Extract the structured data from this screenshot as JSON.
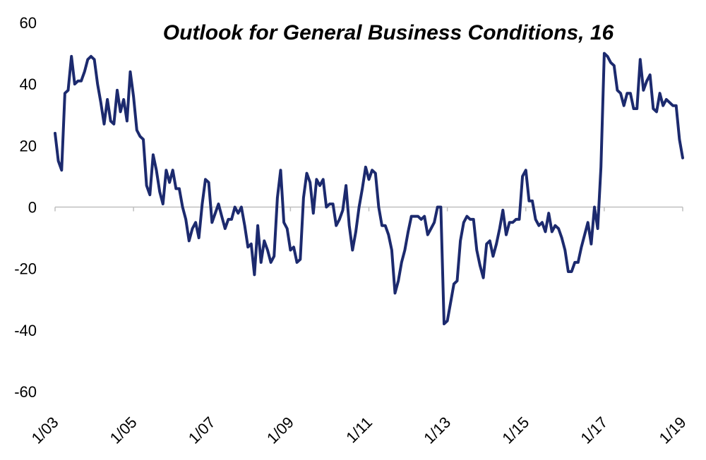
{
  "chart_data": {
    "type": "line",
    "title": "Outlook for General Business Conditions, 16",
    "xlabel": "",
    "ylabel": "",
    "ylim": [
      -60,
      60
    ],
    "yticks": [
      "60",
      "40",
      "20",
      "0",
      "-20",
      "-40",
      "-60"
    ],
    "xticks": [
      "1/03",
      "1/05",
      "1/07",
      "1/09",
      "1/11",
      "1/13",
      "1/15",
      "1/17",
      "1/19"
    ],
    "grid": false,
    "legend": "none",
    "line_color": "#1c2a6e",
    "series": [
      {
        "points": [
          [
            "2003-01",
            24
          ],
          [
            "2003-02",
            15
          ],
          [
            "2003-03",
            12
          ],
          [
            "2003-04",
            37
          ],
          [
            "2003-05",
            38
          ],
          [
            "2003-06",
            49
          ],
          [
            "2003-07",
            40
          ],
          [
            "2003-08",
            41
          ],
          [
            "2003-09",
            41
          ],
          [
            "2003-10",
            44
          ],
          [
            "2003-11",
            48
          ],
          [
            "2003-12",
            49
          ],
          [
            "2004-01",
            48
          ],
          [
            "2004-02",
            40
          ],
          [
            "2004-03",
            34
          ],
          [
            "2004-04",
            27
          ],
          [
            "2004-05",
            35
          ],
          [
            "2004-06",
            28
          ],
          [
            "2004-07",
            27
          ],
          [
            "2004-08",
            38
          ],
          [
            "2004-09",
            31
          ],
          [
            "2004-10",
            35
          ],
          [
            "2004-11",
            28
          ],
          [
            "2004-12",
            44
          ],
          [
            "2005-01",
            36
          ],
          [
            "2005-02",
            25
          ],
          [
            "2005-03",
            23
          ],
          [
            "2005-04",
            22
          ],
          [
            "2005-05",
            7
          ],
          [
            "2005-06",
            4
          ],
          [
            "2005-07",
            17
          ],
          [
            "2005-08",
            12
          ],
          [
            "2005-09",
            5
          ],
          [
            "2005-10",
            1
          ],
          [
            "2005-11",
            12
          ],
          [
            "2005-12",
            8
          ],
          [
            "2006-01",
            12
          ],
          [
            "2006-02",
            6
          ],
          [
            "2006-03",
            6
          ],
          [
            "2006-04",
            0
          ],
          [
            "2006-05",
            -4
          ],
          [
            "2006-06",
            -11
          ],
          [
            "2006-07",
            -7
          ],
          [
            "2006-08",
            -5
          ],
          [
            "2006-09",
            -10
          ],
          [
            "2006-10",
            1
          ],
          [
            "2006-11",
            9
          ],
          [
            "2006-12",
            8
          ],
          [
            "2007-01",
            -5
          ],
          [
            "2007-02",
            -2
          ],
          [
            "2007-03",
            1
          ],
          [
            "2007-04",
            -3
          ],
          [
            "2007-05",
            -7
          ],
          [
            "2007-06",
            -4
          ],
          [
            "2007-07",
            -4
          ],
          [
            "2007-08",
            0
          ],
          [
            "2007-09",
            -2
          ],
          [
            "2007-10",
            0
          ],
          [
            "2007-11",
            -6
          ],
          [
            "2007-12",
            -13
          ],
          [
            "2008-01",
            -12
          ],
          [
            "2008-02",
            -22
          ],
          [
            "2008-03",
            -6
          ],
          [
            "2008-04",
            -18
          ],
          [
            "2008-05",
            -11
          ],
          [
            "2008-06",
            -14
          ],
          [
            "2008-07",
            -18
          ],
          [
            "2008-08",
            -16
          ],
          [
            "2008-09",
            3
          ],
          [
            "2008-10",
            12
          ],
          [
            "2008-11",
            -5
          ],
          [
            "2008-12",
            -7
          ],
          [
            "2009-01",
            -14
          ],
          [
            "2009-02",
            -13
          ],
          [
            "2009-03",
            -18
          ],
          [
            "2009-04",
            -17
          ],
          [
            "2009-05",
            3
          ],
          [
            "2009-06",
            11
          ],
          [
            "2009-07",
            8
          ],
          [
            "2009-08",
            -2
          ],
          [
            "2009-09",
            9
          ],
          [
            "2009-10",
            7
          ],
          [
            "2009-11",
            9
          ],
          [
            "2009-12",
            0
          ],
          [
            "2010-01",
            1
          ],
          [
            "2010-02",
            1
          ],
          [
            "2010-03",
            -6
          ],
          [
            "2010-04",
            -4
          ],
          [
            "2010-05",
            -1
          ],
          [
            "2010-06",
            7
          ],
          [
            "2010-07",
            -6
          ],
          [
            "2010-08",
            -14
          ],
          [
            "2010-09",
            -8
          ],
          [
            "2010-10",
            0
          ],
          [
            "2010-11",
            6
          ],
          [
            "2010-12",
            13
          ],
          [
            "2011-01",
            9
          ],
          [
            "2011-02",
            12
          ],
          [
            "2011-03",
            11
          ],
          [
            "2011-04",
            0
          ],
          [
            "2011-05",
            -6
          ],
          [
            "2011-06",
            -6
          ],
          [
            "2011-07",
            -9
          ],
          [
            "2011-08",
            -14
          ],
          [
            "2011-09",
            -28
          ],
          [
            "2011-10",
            -24
          ],
          [
            "2011-11",
            -18
          ],
          [
            "2011-12",
            -14
          ],
          [
            "2012-01",
            -8
          ],
          [
            "2012-02",
            -3
          ],
          [
            "2012-03",
            -3
          ],
          [
            "2012-04",
            -3
          ],
          [
            "2012-05",
            -4
          ],
          [
            "2012-06",
            -3
          ],
          [
            "2012-07",
            -9
          ],
          [
            "2012-08",
            -7
          ],
          [
            "2012-09",
            -5
          ],
          [
            "2012-10",
            0
          ],
          [
            "2012-11",
            0
          ],
          [
            "2012-12",
            -38
          ],
          [
            "2013-01",
            -37
          ],
          [
            "2013-02",
            -31
          ],
          [
            "2013-03",
            -25
          ],
          [
            "2013-04",
            -24
          ],
          [
            "2013-05",
            -11
          ],
          [
            "2013-06",
            -5
          ],
          [
            "2013-07",
            -3
          ],
          [
            "2013-08",
            -4
          ],
          [
            "2013-09",
            -4
          ],
          [
            "2013-10",
            -14
          ],
          [
            "2013-11",
            -19
          ],
          [
            "2013-12",
            -23
          ],
          [
            "2014-01",
            -12
          ],
          [
            "2014-02",
            -11
          ],
          [
            "2014-03",
            -16
          ],
          [
            "2014-04",
            -12
          ],
          [
            "2014-05",
            -7
          ],
          [
            "2014-06",
            -1
          ],
          [
            "2014-07",
            -9
          ],
          [
            "2014-08",
            -5
          ],
          [
            "2014-09",
            -5
          ],
          [
            "2014-10",
            -4
          ],
          [
            "2014-11",
            -4
          ],
          [
            "2014-12",
            10
          ],
          [
            "2015-01",
            12
          ],
          [
            "2015-02",
            2
          ],
          [
            "2015-03",
            2
          ],
          [
            "2015-04",
            -4
          ],
          [
            "2015-05",
            -6
          ],
          [
            "2015-06",
            -5
          ],
          [
            "2015-07",
            -8
          ],
          [
            "2015-08",
            -2
          ],
          [
            "2015-09",
            -8
          ],
          [
            "2015-10",
            -6
          ],
          [
            "2015-11",
            -7
          ],
          [
            "2015-12",
            -10
          ],
          [
            "2016-01",
            -14
          ],
          [
            "2016-02",
            -21
          ],
          [
            "2016-03",
            -21
          ],
          [
            "2016-04",
            -18
          ],
          [
            "2016-05",
            -18
          ],
          [
            "2016-06",
            -13
          ],
          [
            "2016-07",
            -9
          ],
          [
            "2016-08",
            -5
          ],
          [
            "2016-09",
            -12
          ],
          [
            "2016-10",
            0
          ],
          [
            "2016-11",
            -7
          ],
          [
            "2016-12",
            13
          ],
          [
            "2017-01",
            50
          ],
          [
            "2017-02",
            49
          ],
          [
            "2017-03",
            47
          ],
          [
            "2017-04",
            46
          ],
          [
            "2017-05",
            38
          ],
          [
            "2017-06",
            37
          ],
          [
            "2017-07",
            33
          ],
          [
            "2017-08",
            37
          ],
          [
            "2017-09",
            37
          ],
          [
            "2017-10",
            32
          ],
          [
            "2017-11",
            32
          ],
          [
            "2017-12",
            48
          ],
          [
            "2018-01",
            38
          ],
          [
            "2018-02",
            41
          ],
          [
            "2018-03",
            43
          ],
          [
            "2018-04",
            32
          ],
          [
            "2018-05",
            31
          ],
          [
            "2018-06",
            37
          ],
          [
            "2018-07",
            33
          ],
          [
            "2018-08",
            35
          ],
          [
            "2018-09",
            34
          ],
          [
            "2018-10",
            33
          ],
          [
            "2018-11",
            33
          ],
          [
            "2018-12",
            22
          ],
          [
            "2019-01",
            16
          ]
        ]
      }
    ]
  }
}
